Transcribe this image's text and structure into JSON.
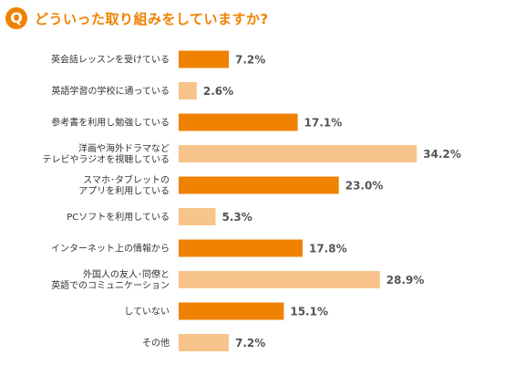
{
  "header": {
    "q_mark": "Q",
    "title": "どういった取り組みをしていますか?"
  },
  "colors": {
    "accent": "#ef8200",
    "dark_bar": "#ef8200",
    "light_bar": "#f7c48b"
  },
  "chart_data": {
    "type": "bar",
    "orientation": "horizontal",
    "categories": [
      [
        "英会話レッスンを受けている"
      ],
      [
        "英語学習の学校に通っている"
      ],
      [
        "参考書を利用し勉強している"
      ],
      [
        "洋画や海外ドラマなど",
        "テレビやラジオを視聴している"
      ],
      [
        "スマホ･タブレットの",
        "アプリを利用している"
      ],
      [
        "PCソフトを利用している"
      ],
      [
        "インターネット上の情報から"
      ],
      [
        "外国人の友人･同僚と",
        "英語でのコミュニケーション"
      ],
      [
        "していない"
      ],
      [
        "その他"
      ]
    ],
    "values": [
      7.2,
      2.6,
      17.1,
      34.2,
      23.0,
      5.3,
      17.8,
      28.9,
      15.1,
      7.2
    ],
    "value_labels": [
      "7.2%",
      "2.6%",
      "17.1%",
      "34.2%",
      "23.0%",
      "5.3%",
      "17.8%",
      "28.9%",
      "15.1%",
      "7.2%"
    ],
    "bar_shades": [
      "dark",
      "light",
      "dark",
      "light",
      "dark",
      "light",
      "dark",
      "light",
      "dark",
      "light"
    ],
    "xlim": [
      0,
      40
    ],
    "grid": false,
    "legend": "none"
  }
}
